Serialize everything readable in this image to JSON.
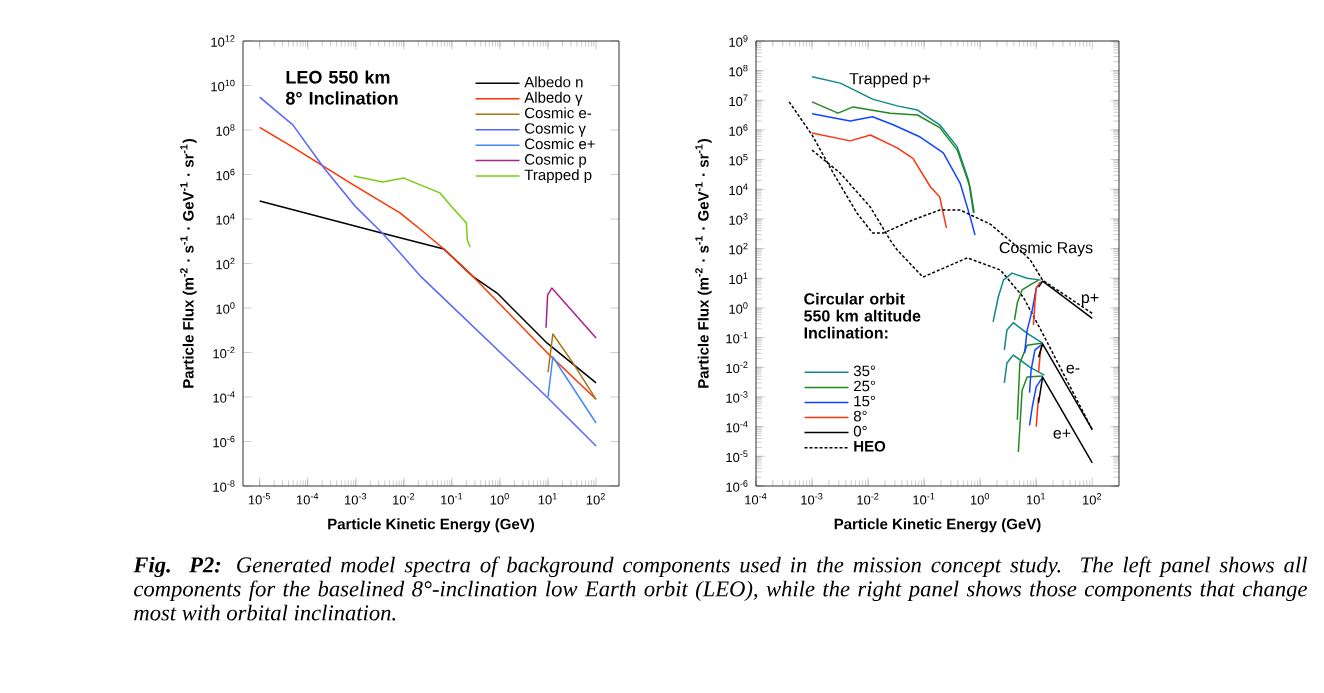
{
  "chart_data": [
    {
      "type": "line",
      "xlabel": "Particle Kinetic Energy (GeV)",
      "ylabel": "Particle Flux (m$^{-2}$ · s$^{-1}$ · GeV$^{-1}$ · sr$^{-1}$)",
      "log": "xy",
      "legend": "top right",
      "xlim": [
        4.5e-06,
        300
      ],
      "ylim": [
        1e-08,
        1000000000000.0
      ],
      "xticks": [
        {
          "value": 1e-05,
          "label": "10$^{-5}$"
        },
        {
          "value": 0.0001,
          "label": "10$^{-4}$"
        },
        {
          "value": 0.001,
          "label": "10$^{-3}$"
        },
        {
          "value": 0.01,
          "label": "10$^{-2}$"
        },
        {
          "value": 0.1,
          "label": "10$^{-1}$"
        },
        {
          "value": 1,
          "label": "10$^{0}$"
        },
        {
          "value": 10,
          "label": "10$^{1}$"
        },
        {
          "value": 100,
          "label": "10$^{2}$"
        }
      ],
      "yticks": [
        {
          "value": 1e-08,
          "label": "10$^{-8}$"
        },
        {
          "value": 1e-06,
          "label": "10$^{-6}$"
        },
        {
          "value": 0.0001,
          "label": "10$^{-4}$"
        },
        {
          "value": 0.01,
          "label": "10$^{-2}$"
        },
        {
          "value": 1,
          "label": "10$^{0}$"
        },
        {
          "value": 100,
          "label": "10$^{2}$"
        },
        {
          "value": 10000.0,
          "label": "10$^{4}$"
        },
        {
          "value": 1000000.0,
          "label": "10$^{6}$"
        },
        {
          "value": 100000000.0,
          "label": "10$^{8}$"
        },
        {
          "value": 10000000000.0,
          "label": "10$^{10}$"
        },
        {
          "value": 1000000000000.0,
          "label": "10$^{12}$"
        }
      ],
      "annotations": [
        "LEO 550 km 8° Inclination",
        "**Fig. P2:** Generated model spectra of background components used in the mission concept study. The left panel shows all components for the baselined 8°-inclination low Earth orbit (LEO), while the right panel shows those components that change most with orbital inclination."
      ],
      "series": [
        {
          "name": "Albedo n",
          "color": "#000000",
          "x": [
            1e-05,
            0.0036,
            0.068,
            0.28,
            0.87,
            9.5,
            100
          ],
          "values": [
            65000.0,
            2300.0,
            450,
            25,
            4.7,
            0.027,
            0.00043
          ]
        },
        {
          "name": "Albedo γ",
          "color": "#ff3300",
          "x": [
            1e-05,
            4.9e-05,
            0.00025,
            0.00076,
            0.0083,
            0.023,
            0.068,
            0.28,
            9.5,
            100
          ],
          "values": [
            130000000.0,
            17000000.0,
            1900000.0,
            420000.0,
            19000.0,
            3200.0,
            450,
            25,
            0.01,
            7.9e-05
          ]
        },
        {
          "name": "Cosmic e-",
          "color": "#aa7711",
          "x": [
            10,
            12.6,
            33,
            100
          ],
          "values": [
            0.0013,
            0.068,
            0.0034,
            7.9e-05
          ]
        },
        {
          "name": "Cosmic γ",
          "color": "#5566ff",
          "x": [
            1e-05,
            4.9e-05,
            0.00022,
            0.001,
            0.0036,
            0.023,
            9.5,
            100
          ],
          "values": [
            3000000000.0,
            170000000.0,
            1900000.0,
            35000.0,
            2300.0,
            25,
            0.0001,
            6.3e-07
          ]
        },
        {
          "name": "Cosmic e+",
          "color": "#4488ff",
          "x": [
            10,
            12.6,
            100
          ],
          "values": [
            0.0001,
            0.0063,
            6.8e-06
          ]
        },
        {
          "name": "Cosmic p",
          "color": "#aa2288",
          "x": [
            9.1,
            9.8,
            12,
            100
          ],
          "values": [
            0.13,
            3.8,
            7.9,
            0.045
          ]
        },
        {
          "name": "Trapped p",
          "color": "#77cc11",
          "x": [
            0.00091,
            0.0036,
            0.01,
            0.056,
            0.1,
            0.2,
            0.21,
            0.24
          ],
          "values": [
            850000.0,
            460000.0,
            690000.0,
            150000.0,
            35000.0,
            6600.0,
            1100.0,
            550
          ]
        }
      ]
    },
    {
      "type": "line",
      "xlabel": "Particle Kinetic Energy (GeV)",
      "ylabel": "Particle Flux (m$^{-2}$ · s$^{-1}$ · GeV$^{-1}$ · sr$^{-1}$)",
      "log": "xy",
      "legend": "bottom left",
      "legend_title": "Circular orbit 550 km altitude Inclination:",
      "xlim": [
        0.0001,
        300
      ],
      "ylim": [
        1e-06,
        1000000000.0
      ],
      "xticks": [
        {
          "value": 0.0001,
          "label": "10$^{-4}$"
        },
        {
          "value": 0.001,
          "label": "10$^{-3}$"
        },
        {
          "value": 0.01,
          "label": "10$^{-2}$"
        },
        {
          "value": 0.1,
          "label": "10$^{-1}$"
        },
        {
          "value": 1,
          "label": "10$^{0}$"
        },
        {
          "value": 10,
          "label": "10$^{1}$"
        },
        {
          "value": 100,
          "label": "10$^{2}$"
        }
      ],
      "yticks": [
        {
          "value": 1e-06,
          "label": "10$^{-6}$"
        },
        {
          "value": 1e-05,
          "label": "10$^{-5}$"
        },
        {
          "value": 0.0001,
          "label": "10$^{-4}$"
        },
        {
          "value": 0.001,
          "label": "10$^{-3}$"
        },
        {
          "value": 0.01,
          "label": "10$^{-2}$"
        },
        {
          "value": 0.1,
          "label": "10$^{-1}$"
        },
        {
          "value": 1,
          "label": "10$^{0}$"
        },
        {
          "value": 10,
          "label": "10$^{1}$"
        },
        {
          "value": 100,
          "label": "10$^{2}$"
        },
        {
          "value": 1000.0,
          "label": "10$^{3}$"
        },
        {
          "value": 10000.0,
          "label": "10$^{4}$"
        },
        {
          "value": 100000.0,
          "label": "10$^{5}$"
        },
        {
          "value": 1000000.0,
          "label": "10$^{6}$"
        },
        {
          "value": 10000000.0,
          "label": "10$^{7}$"
        },
        {
          "value": 100000000.0,
          "label": "10$^{8}$"
        },
        {
          "value": 1000000000.0,
          "label": "10$^{9}$"
        }
      ],
      "annotations": [
        "Trapped p+",
        "Cosmic Rays",
        "p+",
        "e-",
        "e+"
      ],
      "series": [
        {
          "name": "35°",
          "color": "#118888",
          "x": [
            0.001,
            0.0032,
            0.012,
            0.033,
            0.076,
            0.19,
            0.39,
            0.62,
            0.76
          ],
          "values": [
            62000000.0,
            38000000.0,
            11000000.0,
            6500000.0,
            4700000.0,
            1500000.0,
            270000.0,
            20000.0,
            1600.0
          ]
        },
        {
          "name": "25°",
          "color": "#228822",
          "x": [
            0.001,
            0.0029,
            0.0054,
            0.025,
            0.076,
            0.19,
            0.39,
            0.66,
            0.78
          ],
          "values": [
            8900000.0,
            3700000.0,
            6000000.0,
            3700000.0,
            3200000.0,
            1200000.0,
            210000.0,
            12000.0,
            1600.0
          ]
        },
        {
          "name": "15°",
          "color": "#1144ff",
          "x": [
            0.001,
            0.0048,
            0.012,
            0.028,
            0.085,
            0.22,
            0.44,
            0.66,
            0.81
          ],
          "values": [
            3500000.0,
            2000000.0,
            2800000.0,
            1500000.0,
            580000.0,
            170000.0,
            16000.0,
            1200.0,
            290
          ]
        },
        {
          "name": "8°",
          "color": "#ff3311",
          "x": [
            0.001,
            0.0048,
            0.011,
            0.033,
            0.063,
            0.13,
            0.19,
            0.25
          ],
          "values": [
            790000.0,
            430000.0,
            680000.0,
            250000.0,
            110000.0,
            12000.0,
            5500.0,
            500
          ]
        },
        {
          "name": "0°",
          "color": "#000000",
          "x": [
            11,
            13,
            100
          ],
          "values": [
            5.1,
            8.1,
            0.45
          ]
        },
        {
          "name": "HEO",
          "color": "#000000",
          "line_style": "dotted",
          "x": [
            0.00039,
            0.001,
            0.0024,
            0.0063,
            0.012,
            0.019,
            0.063,
            0.19,
            0.44,
            1.5,
            3.9,
            7.8,
            13,
            100
          ],
          "values": [
            8900000.0,
            680000.0,
            35000.0,
            1600.0,
            340,
            340,
            930,
            2000.0,
            2000.0,
            680,
            150,
            42,
            8.7,
            0.66
          ]
        },
        {
          "color": "#000000",
          "line_style": "dotted",
          "x": [
            0.001,
            0.0032,
            0.011,
            0.025,
            0.033,
            0.095,
            0.59,
            2.3,
            5.9,
            13,
            100
          ],
          "values": [
            210000.0,
            35000.0,
            2500.0,
            190,
            91,
            11,
            49,
            19,
            2.3,
            0.14,
            7.9e-05
          ]
        },
        {
          "color": "#118888",
          "x": [
            1.7,
            2.1,
            2.6,
            3.7,
            6.9,
            12
          ],
          "values": [
            0.34,
            2.3,
            8.7,
            15,
            10,
            8.7
          ]
        },
        {
          "color": "#118888",
          "x": [
            2.7,
            3.0,
            3.9,
            6.9,
            13
          ],
          "values": [
            0.039,
            0.18,
            0.32,
            0.14,
            0.066
          ]
        },
        {
          "color": "#118888",
          "x": [
            2.7,
            3.0,
            3.9,
            7.8,
            14
          ],
          "values": [
            0.003,
            0.014,
            0.026,
            0.01,
            0.0055
          ]
        },
        {
          "color": "#228822",
          "x": [
            4.1,
            4.6,
            5.6,
            7.8,
            11
          ],
          "values": [
            0.4,
            1.5,
            4.1,
            6.0,
            8.7
          ]
        },
        {
          "color": "#228822",
          "x": [
            4.6,
            5.1,
            6.9,
            13
          ],
          "values": [
            0.00017,
            0.014,
            0.056,
            0.066
          ]
        },
        {
          "color": "#228822",
          "x": [
            4.8,
            5.6,
            6.9,
            13
          ],
          "values": [
            1.4e-05,
            0.0017,
            0.0047,
            0.0051
          ]
        },
        {
          "color": "#1144ff",
          "x": [
            6.2,
            6.9,
            8.5,
            10,
            12
          ],
          "values": [
            0.03,
            0.18,
            0.85,
            4.7,
            7.6
          ]
        },
        {
          "color": "#1144ff",
          "x": [
            7.6,
            8.1,
            9.5,
            13
          ],
          "values": [
            0.0014,
            0.0081,
            0.039,
            0.062
          ]
        },
        {
          "color": "#1144ff",
          "x": [
            7.6,
            8.5,
            10,
            13
          ],
          "values": [
            0.00011,
            0.00046,
            0.0022,
            0.0047
          ]
        },
        {
          "color": "#ff3311",
          "x": [
            8.9,
            9.5,
            10,
            12
          ],
          "values": [
            0.27,
            1.5,
            4.7,
            7.6
          ]
        },
        {
          "color": "#ff3311",
          "x": [
            11,
            12,
            13
          ],
          "values": [
            0.0069,
            0.039,
            0.062
          ]
        },
        {
          "color": "#ff3311",
          "x": [
            10,
            11
          ],
          "values": [
            0.0001,
            0.001
          ]
        },
        {
          "color": "#000000",
          "x": [
            11,
            13,
            100
          ],
          "values": [
            0.022,
            0.062,
            7.9e-05
          ]
        },
        {
          "color": "#000000",
          "x": [
            11,
            13,
            100
          ],
          "values": [
            0.00063,
            0.0047,
            6e-06
          ]
        }
      ]
    }
  ]
}
